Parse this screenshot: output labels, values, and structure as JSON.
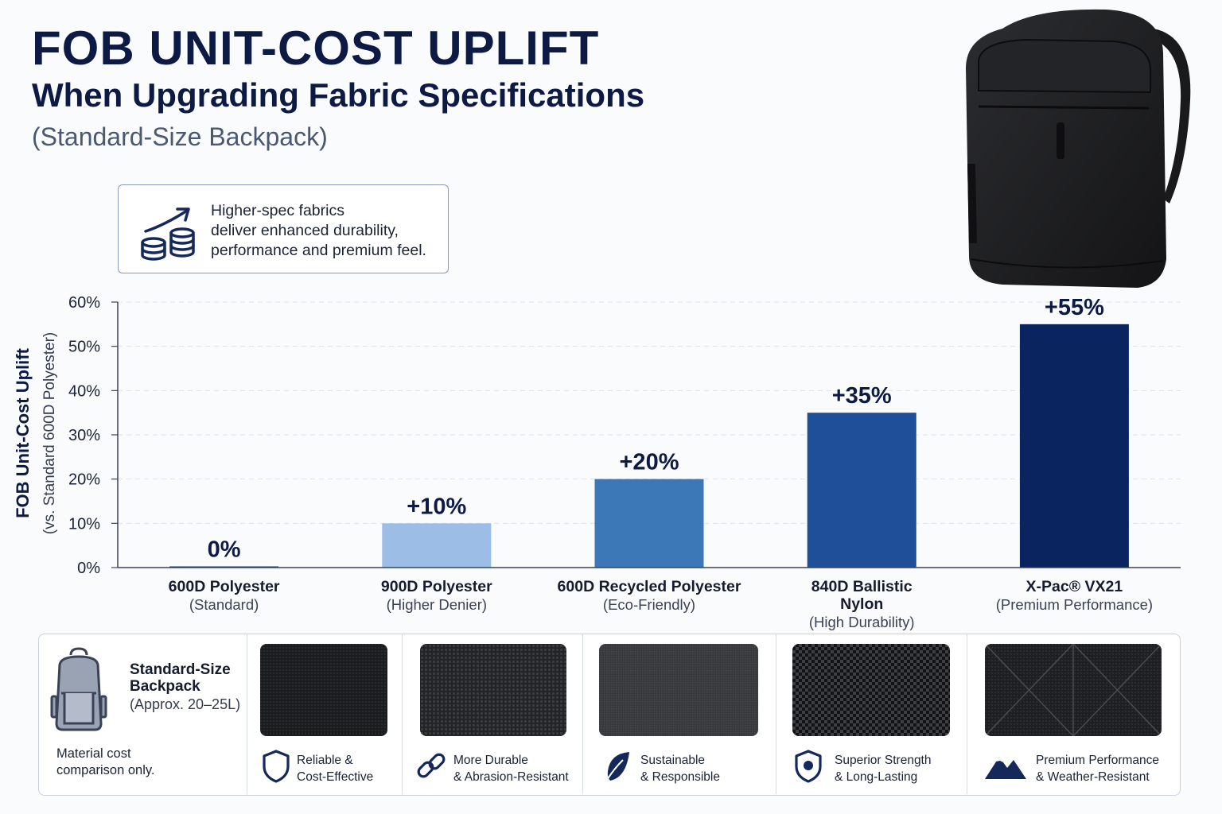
{
  "header": {
    "title": "FOB UNIT-COST UPLIFT",
    "subtitle": "When Upgrading Fabric Specifications",
    "subsubtitle": "(Standard-Size Backpack)"
  },
  "callout": {
    "icon": "coins-growth-icon",
    "lines": [
      "Higher-spec fabrics",
      "deliver enhanced durability,",
      "performance and premium feel."
    ]
  },
  "chart_data": {
    "type": "bar",
    "ylabel": "FOB Unit-Cost Uplift",
    "ylabel_sub": "(vs. Standard 600D Polyester)",
    "ylim": [
      0,
      60
    ],
    "yticks": [
      "0%",
      "10%",
      "20%",
      "30%",
      "40%",
      "50%",
      "60%"
    ],
    "grid": true,
    "categories": [
      {
        "name": "600D Polyester",
        "sub": "(Standard)"
      },
      {
        "name": "900D Polyester",
        "sub": "(Higher Denier)"
      },
      {
        "name": "600D Recycled Polyester",
        "sub": "(Eco-Friendly)"
      },
      {
        "name": "840D Ballistic\nNylon",
        "sub": "(High Durability)"
      },
      {
        "name": "X-Pac® VX21",
        "sub": "(Premium Performance)"
      }
    ],
    "values": [
      0,
      10,
      20,
      35,
      55
    ],
    "labels": [
      "0%",
      "+10%",
      "+20%",
      "+35%",
      "+55%"
    ],
    "colors": [
      "#1e3a7a",
      "#9bbde6",
      "#3c78b8",
      "#1f4f98",
      "#0a2460"
    ]
  },
  "bottom_panel": {
    "intro": {
      "icon": "backpack-outline-icon",
      "label_lines": [
        "Standard-Size",
        "Backpack"
      ],
      "size": "(Approx. 20–25L)",
      "note_lines": [
        "Material cost",
        "comparison only."
      ]
    },
    "features": [
      {
        "icon": "shield-icon",
        "lines": [
          "Reliable &",
          "Cost-Effective"
        ]
      },
      {
        "icon": "chain-link-icon",
        "lines": [
          "More Durable",
          "& Abrasion-Resistant"
        ]
      },
      {
        "icon": "leaf-icon",
        "lines": [
          "Sustainable",
          "& Responsible"
        ]
      },
      {
        "icon": "shield-badge-icon",
        "lines": [
          "Superior Strength",
          "& Long-Lasting"
        ]
      },
      {
        "icon": "mountain-icon",
        "lines": [
          "Premium Performance",
          "& Weather-Resistant"
        ]
      }
    ]
  }
}
